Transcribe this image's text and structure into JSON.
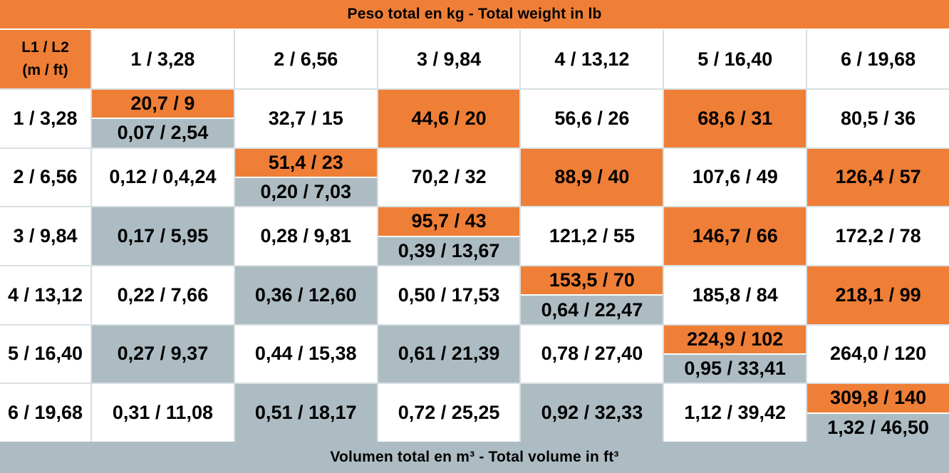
{
  "top_banner": "Peso total en kg - Total weight in lb",
  "bottom_banner": "Volumen total en m³ - Total volume in ft³",
  "corner": {
    "line1": "L1 / L2",
    "line2": "(m / ft)"
  },
  "columns": [
    "1 / 3,28",
    "2 / 6,56",
    "3 / 9,84",
    "4 / 13,12",
    "5 / 16,40",
    "6 / 19,68"
  ],
  "colors": {
    "orange": "#ef7f37",
    "gray": "#adbcc2",
    "white": "#ffffff"
  },
  "rows": [
    {
      "label": "1 / 3,28",
      "cells": [
        {
          "type": "split",
          "top": "20,7 / 9",
          "bottom": "0,07 / 2,54"
        },
        {
          "type": "white",
          "text": "32,7 / 15"
        },
        {
          "type": "orange",
          "text": "44,6 / 20"
        },
        {
          "type": "white",
          "text": "56,6 / 26"
        },
        {
          "type": "orange",
          "text": "68,6 / 31"
        },
        {
          "type": "white",
          "text": "80,5 / 36"
        }
      ]
    },
    {
      "label": "2 / 6,56",
      "cells": [
        {
          "type": "white",
          "text": "0,12 / 0,4,24"
        },
        {
          "type": "split",
          "top": "51,4 / 23",
          "bottom": "0,20 / 7,03"
        },
        {
          "type": "white",
          "text": "70,2 / 32"
        },
        {
          "type": "orange",
          "text": "88,9 / 40"
        },
        {
          "type": "white",
          "text": "107,6 / 49"
        },
        {
          "type": "orange",
          "text": "126,4 / 57"
        }
      ]
    },
    {
      "label": "3 / 9,84",
      "cells": [
        {
          "type": "gray",
          "text": "0,17 / 5,95"
        },
        {
          "type": "white",
          "text": "0,28 / 9,81"
        },
        {
          "type": "split",
          "top": "95,7 / 43",
          "bottom": "0,39 / 13,67"
        },
        {
          "type": "white",
          "text": "121,2 / 55"
        },
        {
          "type": "orange",
          "text": "146,7 / 66"
        },
        {
          "type": "white",
          "text": "172,2 / 78"
        }
      ]
    },
    {
      "label": "4 / 13,12",
      "cells": [
        {
          "type": "white",
          "text": "0,22 / 7,66"
        },
        {
          "type": "gray",
          "text": "0,36 / 12,60"
        },
        {
          "type": "white",
          "text": "0,50 / 17,53"
        },
        {
          "type": "split",
          "top": "153,5 / 70",
          "bottom": "0,64 / 22,47"
        },
        {
          "type": "white",
          "text": "185,8 / 84"
        },
        {
          "type": "orange",
          "text": "218,1 / 99"
        }
      ]
    },
    {
      "label": "5 / 16,40",
      "cells": [
        {
          "type": "gray",
          "text": "0,27 / 9,37"
        },
        {
          "type": "white",
          "text": "0,44 / 15,38"
        },
        {
          "type": "gray",
          "text": "0,61 / 21,39"
        },
        {
          "type": "white",
          "text": "0,78 / 27,40"
        },
        {
          "type": "split",
          "top": "224,9 / 102",
          "bottom": "0,95 / 33,41"
        },
        {
          "type": "white",
          "text": "264,0 / 120"
        }
      ]
    },
    {
      "label": "6 / 19,68",
      "cells": [
        {
          "type": "white",
          "text": "0,31 / 11,08"
        },
        {
          "type": "gray",
          "text": "0,51 / 18,17"
        },
        {
          "type": "white",
          "text": "0,72 / 25,25"
        },
        {
          "type": "gray",
          "text": "0,92 / 32,33"
        },
        {
          "type": "white",
          "text": "1,12 / 39,42"
        },
        {
          "type": "split",
          "top": "309,8 / 140",
          "bottom": "1,32 / 46,50"
        }
      ]
    }
  ]
}
